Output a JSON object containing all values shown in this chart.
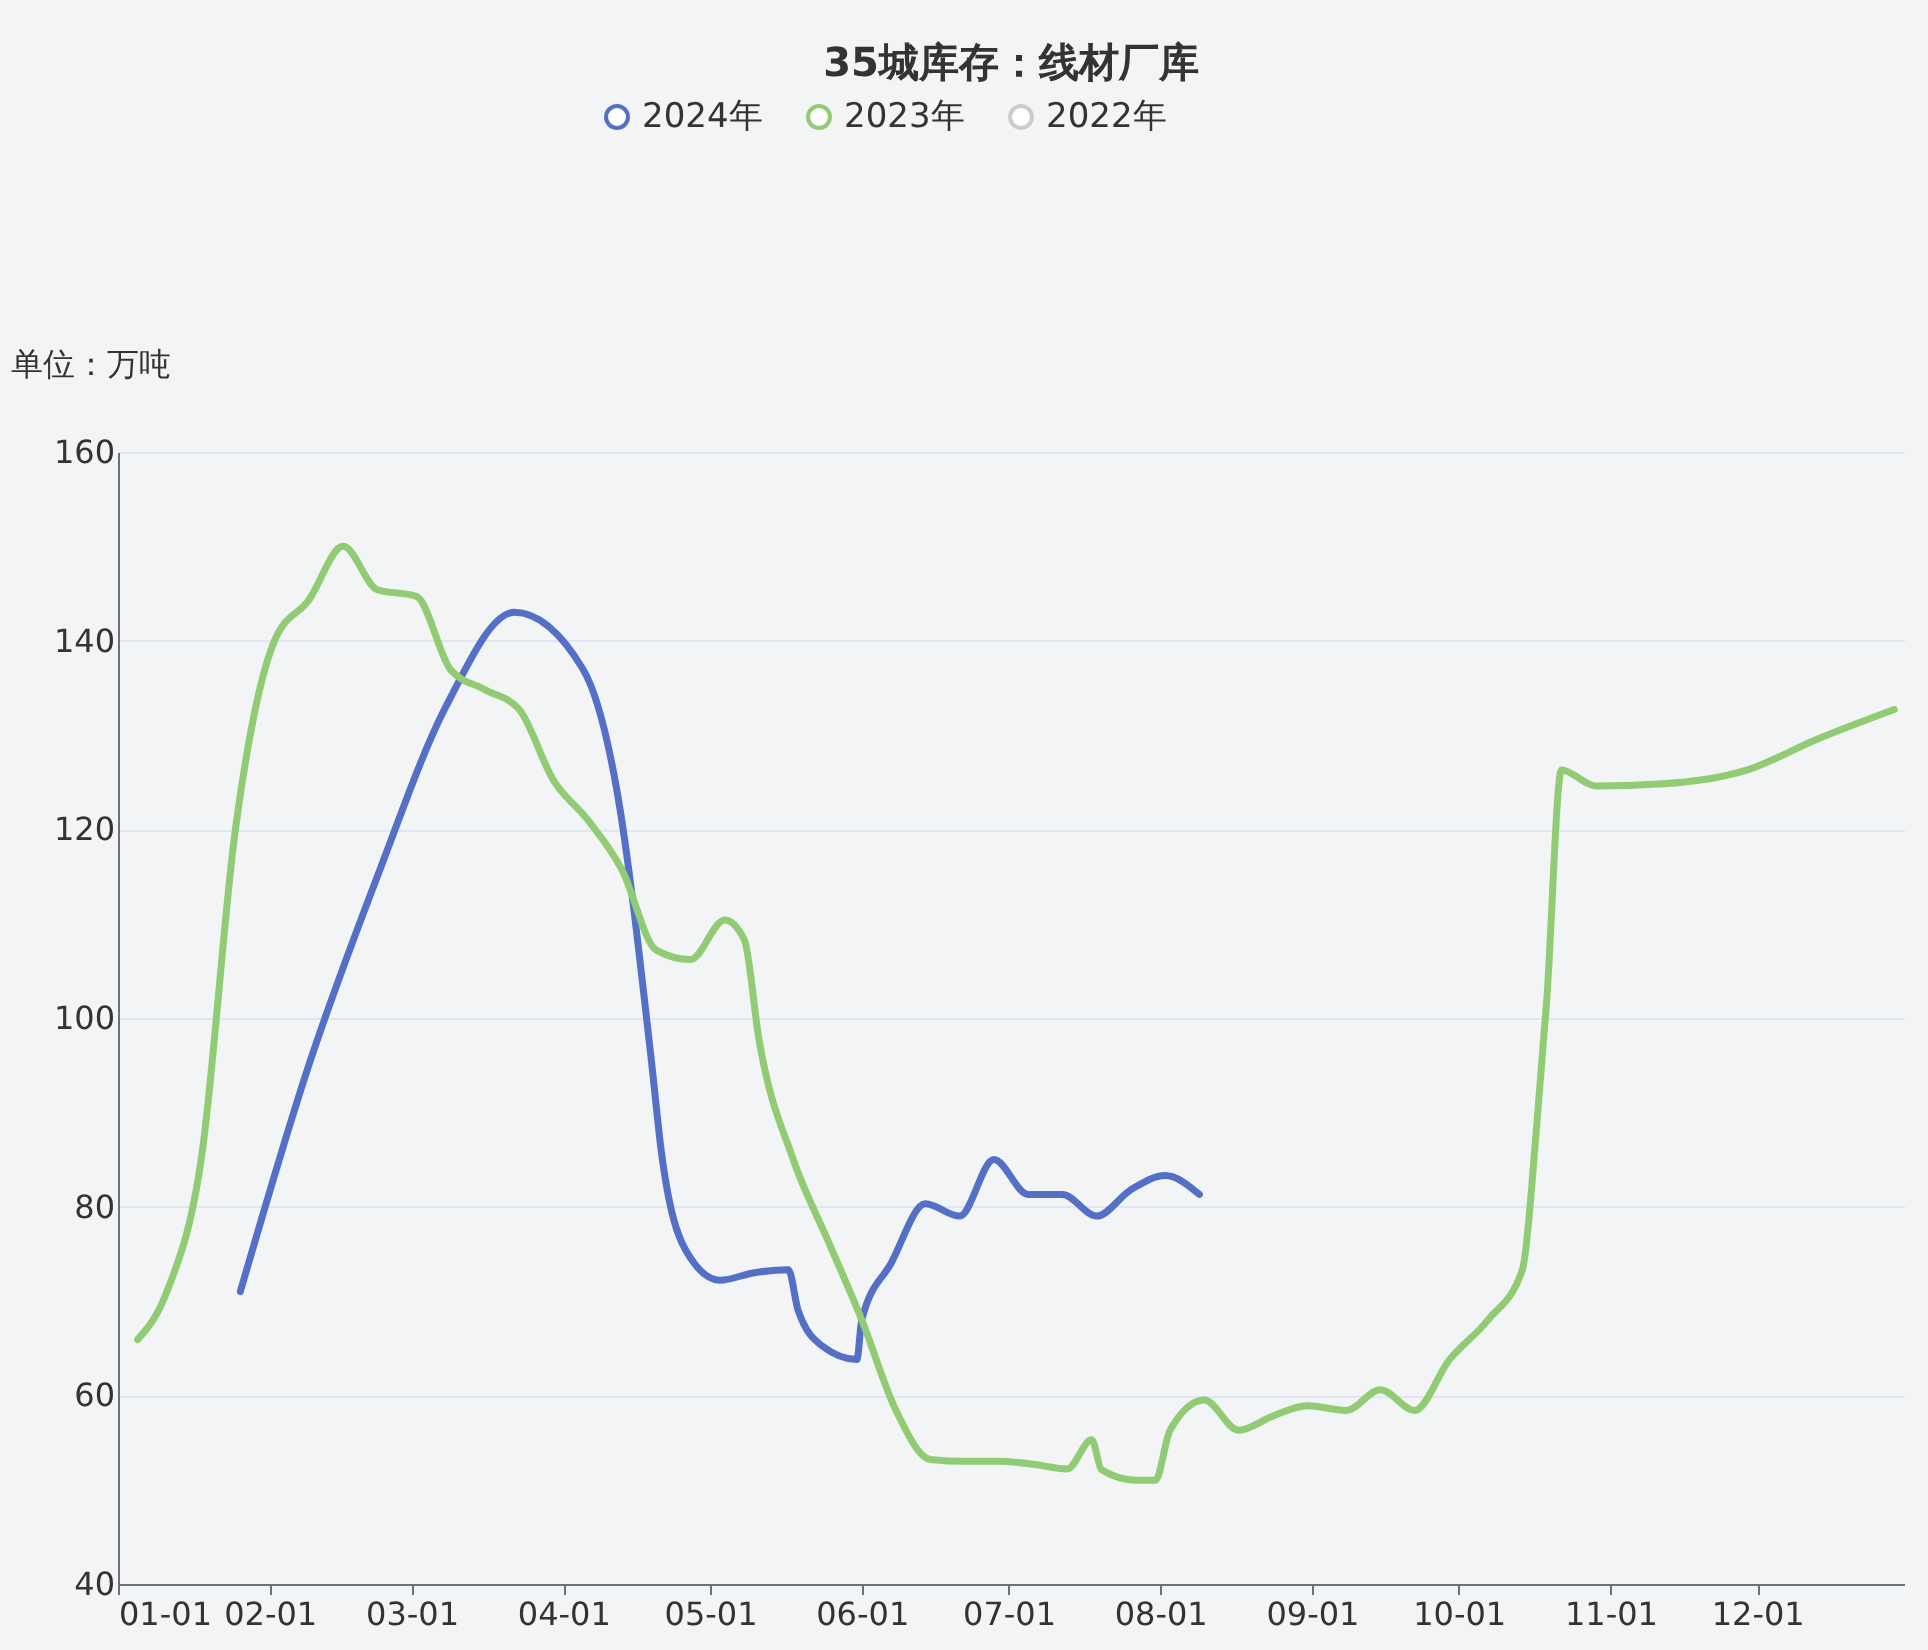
{
  "chart_data": {
    "type": "line",
    "title": "35城库存：线材厂库",
    "ylabel": "单位：万吨",
    "xlim": [
      "--01-01",
      "--12-31"
    ],
    "xticks": [
      {
        "value": "--01-01",
        "label": "01-01"
      },
      {
        "value": "--02-01",
        "label": "02-01"
      },
      {
        "value": "--03-01",
        "label": "03-01"
      },
      {
        "value": "--04-01",
        "label": "04-01"
      },
      {
        "value": "--05-01",
        "label": "05-01"
      },
      {
        "value": "--06-01",
        "label": "06-01"
      },
      {
        "value": "--07-01",
        "label": "07-01"
      },
      {
        "value": "--08-01",
        "label": "08-01"
      },
      {
        "value": "--09-01",
        "label": "09-01"
      },
      {
        "value": "--10-01",
        "label": "10-01"
      },
      {
        "value": "--11-01",
        "label": "11-01"
      },
      {
        "value": "--12-01",
        "label": "12-01"
      }
    ],
    "ylim": [
      40,
      160
    ],
    "yticks": [
      40,
      60,
      80,
      100,
      120,
      140,
      160
    ],
    "grid": "y",
    "legend": "top",
    "line_style": "solid",
    "series": [
      {
        "name": "2024年",
        "color": "#5470c6",
        "x": [
          "--01-26",
          "--02-09",
          "--02-23",
          "--03-08",
          "--03-22",
          "--04-05",
          "--04-12",
          "--04-19",
          "--04-21",
          "--04-26",
          "--05-03",
          "--05-10",
          "--05-17",
          "--05-19",
          "--05-24",
          "--05-31",
          "--06-01",
          "--06-07",
          "--06-14",
          "--06-21",
          "--06-28",
          "--07-05",
          "--07-12",
          "--07-19",
          "--07-26",
          "--08-02",
          "--08-09"
        ],
        "values": [
          71,
          95,
          115,
          133,
          143,
          137,
          124,
          95.5,
          86,
          75.4,
          72.2,
          73,
          73.3,
          69,
          65.2,
          63.8,
          68,
          74,
          80.3,
          79,
          85,
          81.3,
          81.3,
          79,
          81.8,
          83.3,
          81.3
        ]
      },
      {
        "name": "2023年",
        "color": "#91cc75",
        "x": [
          "--01-05",
          "--01-11",
          "--01-18",
          "--01-25",
          "--02-02",
          "--02-09",
          "--02-16",
          "--02-23",
          "--03-02",
          "--03-09",
          "--03-16",
          "--03-23",
          "--03-30",
          "--04-06",
          "--04-13",
          "--04-20",
          "--04-27",
          "--05-04",
          "--05-08",
          "--05-11",
          "--05-18",
          "--05-25",
          "--06-01",
          "--06-08",
          "--06-15",
          "--06-22",
          "--06-29",
          "--07-06",
          "--07-13",
          "--07-18",
          "--07-20",
          "--07-27",
          "--07-31",
          "--08-03",
          "--08-10",
          "--08-17",
          "--08-24",
          "--08-31",
          "--09-08",
          "--09-15",
          "--09-22",
          "--09-29",
          "--10-07",
          "--10-14",
          "--10-17",
          "--10-19",
          "--10-22",
          "--10-29",
          "--11-11",
          "--11-29",
          "--12-13",
          "--12-29"
        ],
        "values": [
          65.9,
          71,
          85,
          120,
          140,
          144.3,
          150,
          145.4,
          144.7,
          136.9,
          134.8,
          132.7,
          125.2,
          121,
          115.7,
          107.2,
          106.2,
          110.4,
          108.3,
          97.7,
          85,
          76.5,
          68,
          58.4,
          53.2,
          53,
          53,
          52.7,
          52.2,
          55.3,
          52.1,
          51,
          51,
          56.3,
          59.5,
          56.3,
          57.8,
          58.9,
          58.4,
          60.6,
          58.4,
          63.7,
          68,
          73.3,
          89,
          102,
          126.3,
          124.6,
          124.8,
          126.3,
          129.5,
          132.7
        ]
      },
      {
        "name": "2022年",
        "color": "#cccccc"
      }
    ]
  }
}
